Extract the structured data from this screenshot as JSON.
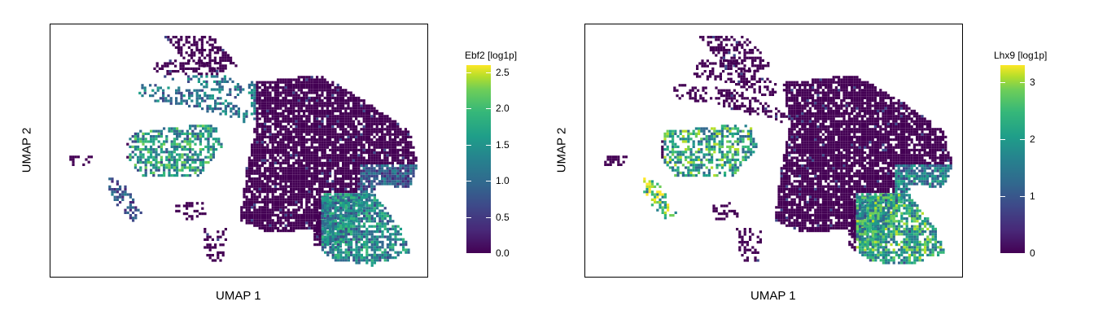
{
  "colors": {
    "low": "#440154",
    "mid": "#21918c",
    "high": "#fde725",
    "frame": "#000000"
  },
  "chart_data": [
    {
      "type": "scatter",
      "title": "",
      "xlabel": "UMAP 1",
      "ylabel": "UMAP 2",
      "colorbar": {
        "title": "Ebf2 [log1p]",
        "ticks": [
          "0.0",
          "0.5",
          "1.0",
          "1.5",
          "2.0",
          "2.5"
        ],
        "range": [
          0,
          2.6
        ]
      },
      "expression_regions": [
        {
          "region": "upper-left arc",
          "level": 1.2
        },
        {
          "region": "left cluster",
          "level": 1.6
        },
        {
          "region": "bottom-right cluster",
          "level": 1.4
        },
        {
          "region": "right-center band",
          "level": 0.9
        }
      ]
    },
    {
      "type": "scatter",
      "title": "",
      "xlabel": "UMAP 1",
      "ylabel": "UMAP 2",
      "colorbar": {
        "title": "Lhx9 [log1p]",
        "ticks": [
          "0",
          "1",
          "2",
          "3"
        ],
        "range": [
          0,
          3.3
        ]
      },
      "expression_regions": [
        {
          "region": "left cluster",
          "level": 2.3
        },
        {
          "region": "far-left arc",
          "level": 2.9
        },
        {
          "region": "bottom-right cluster",
          "level": 2.2
        },
        {
          "region": "right-center band",
          "level": 1.6
        }
      ]
    }
  ]
}
